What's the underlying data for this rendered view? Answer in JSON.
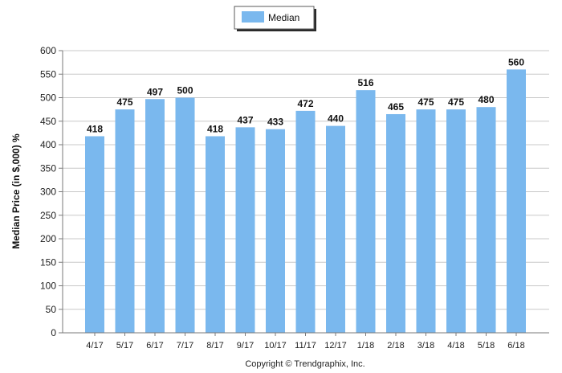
{
  "chart_data": {
    "type": "bar",
    "categories": [
      "4/17",
      "5/17",
      "6/17",
      "7/17",
      "8/17",
      "9/17",
      "10/17",
      "11/17",
      "12/17",
      "1/18",
      "2/18",
      "3/18",
      "4/18",
      "5/18",
      "6/18"
    ],
    "series": [
      {
        "name": "Median",
        "values": [
          418,
          475,
          497,
          500,
          418,
          437,
          433,
          472,
          440,
          516,
          465,
          475,
          475,
          480,
          560
        ]
      }
    ],
    "ylabel": "Median Price (in $,000) %",
    "xlabel": "",
    "ylim": [
      0,
      600
    ],
    "yticks": [
      0,
      50,
      100,
      150,
      200,
      250,
      300,
      350,
      400,
      450,
      500,
      550,
      600
    ],
    "grid": true,
    "legend": "top-center",
    "data_labels": true,
    "colors": {
      "bar": "#7ab8ee",
      "grid": "#c8c8c8",
      "axis": "#7a7a7a"
    }
  },
  "legend": {
    "label": "Median"
  },
  "footer": {
    "copyright": "Copyright © Trendgraphix, Inc."
  }
}
